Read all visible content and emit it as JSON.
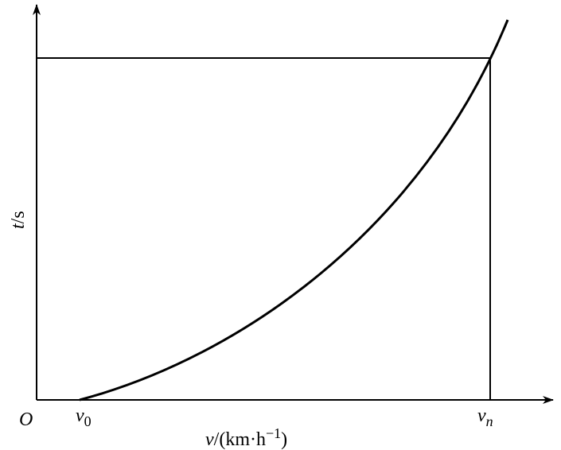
{
  "axes": {
    "origin": "O",
    "y_label": {
      "var": "t",
      "unit": "/s"
    },
    "x_label": {
      "var": "v",
      "unit": "/(km·h",
      "exp": "−1",
      "close": ")"
    }
  },
  "marks": {
    "start": {
      "var": "v",
      "sub": "0"
    },
    "end": {
      "var": "v",
      "sub": "n"
    }
  }
}
